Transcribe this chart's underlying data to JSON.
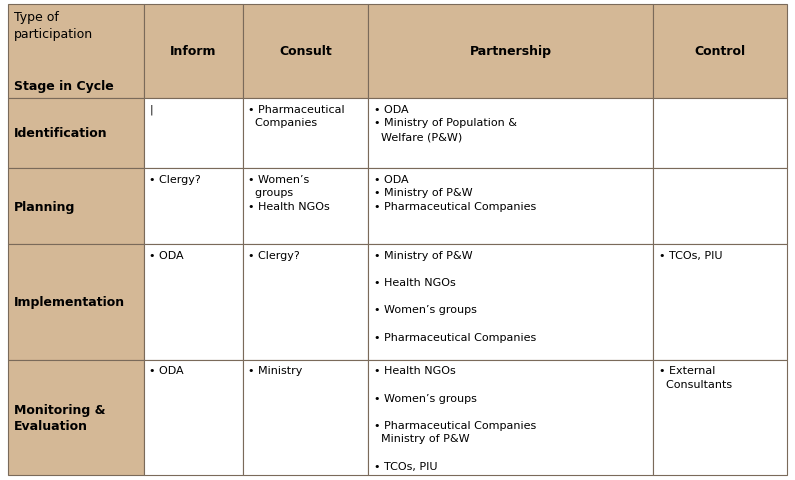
{
  "header_bg": "#D4B896",
  "row_label_bg": "#D4B896",
  "cell_bg": "#FFFFFF",
  "border_color": "#7A6A5A",
  "text_color": "#000000",
  "figsize": [
    7.95,
    4.81
  ],
  "dpi": 100,
  "font_size_header": 9,
  "font_size_label": 9,
  "font_size_cell": 8,
  "col_labels": [
    "",
    "Inform",
    "Consult",
    "Partnership",
    "Control"
  ],
  "row_labels": [
    "Identification",
    "Planning",
    "Implementation",
    "Monitoring &\nEvaluation"
  ],
  "header_col0_top": "Type of\nparticipation",
  "header_col0_bottom": "Stage in Cycle",
  "cells": [
    {
      "inform": "|",
      "consult": "• Pharmaceutical\n  Companies",
      "partnership": "• ODA\n• Ministry of Population &\n  Welfare (P&W)",
      "control": ""
    },
    {
      "inform": "• Clergy?",
      "consult": "• Women’s\n  groups\n• Health NGOs",
      "partnership": "• ODA\n• Ministry of P&W\n• Pharmaceutical Companies",
      "control": ""
    },
    {
      "inform": "• ODA",
      "consult": "• Clergy?",
      "partnership": "• Ministry of P&W\n\n• Health NGOs\n\n• Women’s groups\n\n• Pharmaceutical Companies",
      "control": "• TCOs, PIU"
    },
    {
      "inform": "• ODA",
      "consult": "• Ministry",
      "partnership": "• Health NGOs\n\n• Women’s groups\n\n• Pharmaceutical Companies\n  Ministry of P&W\n\n• TCOs, PIU",
      "control": "• External\n  Consultants"
    }
  ]
}
